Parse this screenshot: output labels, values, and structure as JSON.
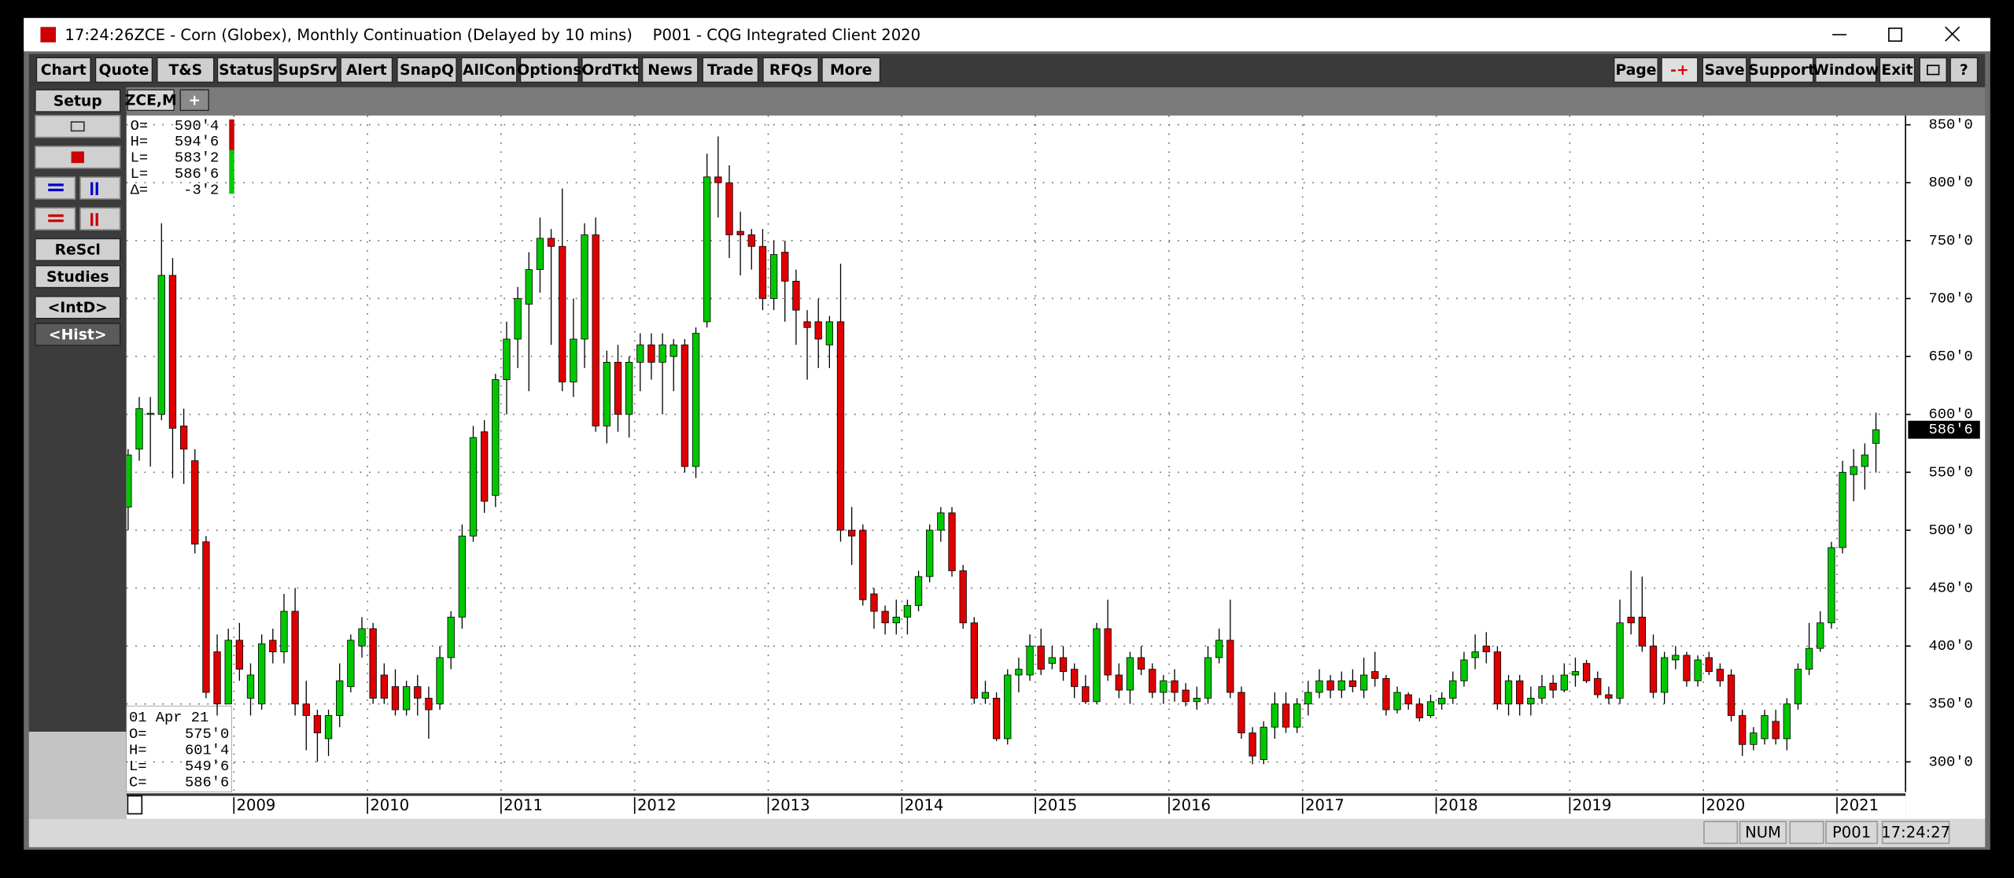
{
  "window": {
    "clock": "17:24:26",
    "title": "ZCE - Corn (Globex), Monthly Continuation (Delayed by 10 mins)",
    "client": "P001 - CQG Integrated Client 2020"
  },
  "toolbar_left": [
    "Chart",
    "Quote",
    "T&S",
    "Status",
    "SupSrv",
    "Alert",
    "SnapQ",
    "AllCon",
    "Options",
    "OrdTkt",
    "News",
    "Trade",
    "RFQs",
    "More"
  ],
  "toolbar_right": [
    "Page",
    "-+",
    "Save",
    "Support",
    "Window",
    "Exit",
    "?"
  ],
  "side_buttons": [
    "Setup",
    "ReScl",
    "Studies",
    "<IntD>",
    "<Hist>"
  ],
  "tabs": [
    "ZCE,M",
    "+"
  ],
  "status_bar": [
    "NUM",
    "P001",
    "17:24:27"
  ],
  "session_readout": {
    "rows": [
      [
        "O=",
        "590'4"
      ],
      [
        "H=",
        "594'6"
      ],
      [
        "L=",
        "583'2"
      ],
      [
        "L=",
        "586'6"
      ],
      [
        "Δ=",
        "-3'2"
      ]
    ]
  },
  "bar_readout": {
    "date": "01 Apr 21",
    "rows": [
      [
        "O=",
        "575'0"
      ],
      [
        "H=",
        "601'4"
      ],
      [
        "L=",
        "549'6"
      ],
      [
        "C=",
        "586'6"
      ]
    ]
  },
  "chart_data": {
    "type": "candlestick",
    "grid": true,
    "up_color": "#00c800",
    "down_color": "#e00000",
    "categories": [
      null,
      null,
      null,
      null,
      null,
      null,
      null,
      null,
      null,
      null,
      "2009",
      null,
      null,
      null,
      null,
      null,
      null,
      null,
      null,
      null,
      null,
      null,
      "2010",
      null,
      null,
      null,
      null,
      null,
      null,
      null,
      null,
      null,
      null,
      null,
      "2011",
      null,
      null,
      null,
      null,
      null,
      null,
      null,
      null,
      null,
      null,
      null,
      "2012",
      null,
      null,
      null,
      null,
      null,
      null,
      null,
      null,
      null,
      null,
      null,
      "2013",
      null,
      null,
      null,
      null,
      null,
      null,
      null,
      null,
      null,
      null,
      null,
      "2014",
      null,
      null,
      null,
      null,
      null,
      null,
      null,
      null,
      null,
      null,
      null,
      "2015",
      null,
      null,
      null,
      null,
      null,
      null,
      null,
      null,
      null,
      null,
      null,
      "2016",
      null,
      null,
      null,
      null,
      null,
      null,
      null,
      null,
      null,
      null,
      null,
      "2017",
      null,
      null,
      null,
      null,
      null,
      null,
      null,
      null,
      null,
      null,
      null,
      "2018",
      null,
      null,
      null,
      null,
      null,
      null,
      null,
      null,
      null,
      null,
      null,
      "2019",
      null,
      null,
      null,
      null,
      null,
      null,
      null,
      null,
      null,
      null,
      null,
      "2020",
      null,
      null,
      null,
      null,
      null,
      null,
      null,
      null,
      null,
      null,
      null,
      "2021",
      null,
      null,
      null
    ],
    "open": [
      520,
      570,
      600,
      600,
      720,
      590,
      560,
      490,
      395,
      350,
      405,
      355,
      350,
      405,
      395,
      430,
      350,
      340,
      320,
      340,
      365,
      400,
      415,
      375,
      365,
      345,
      365,
      355,
      350,
      390,
      425,
      495,
      585,
      530,
      630,
      665,
      695,
      725,
      752,
      745,
      628,
      665,
      755,
      590,
      645,
      600,
      645,
      660,
      645,
      650,
      660,
      555,
      680,
      805,
      800,
      758,
      755,
      745,
      700,
      740,
      715,
      680,
      680,
      660,
      680,
      500,
      500,
      445,
      430,
      420,
      425,
      435,
      460,
      500,
      515,
      465,
      420,
      355,
      355,
      320,
      375,
      375,
      400,
      385,
      390,
      380,
      365,
      352,
      415,
      375,
      362,
      390,
      380,
      360,
      370,
      362,
      352,
      355,
      390,
      405,
      360,
      325,
      302,
      330,
      350,
      330,
      350,
      360,
      370,
      362,
      370,
      362,
      378,
      372,
      345,
      358,
      350,
      340,
      350,
      355,
      370,
      390,
      400,
      395,
      350,
      370,
      350,
      355,
      368,
      362,
      375,
      385,
      372,
      358,
      355,
      425,
      425,
      400,
      360,
      388,
      392,
      370,
      390,
      380,
      375,
      340,
      315,
      320,
      335,
      320,
      350,
      380,
      398,
      420,
      485,
      548,
      555,
      575
    ],
    "high": [
      570,
      615,
      615,
      765,
      735,
      605,
      570,
      495,
      410,
      415,
      420,
      385,
      410,
      415,
      445,
      450,
      370,
      345,
      345,
      385,
      410,
      425,
      420,
      385,
      380,
      370,
      375,
      365,
      400,
      430,
      505,
      590,
      595,
      635,
      680,
      710,
      740,
      770,
      760,
      795,
      700,
      765,
      770,
      655,
      660,
      650,
      670,
      670,
      670,
      665,
      665,
      675,
      825,
      840,
      815,
      775,
      760,
      760,
      750,
      750,
      725,
      690,
      700,
      685,
      730,
      520,
      505,
      450,
      435,
      440,
      440,
      465,
      505,
      520,
      520,
      470,
      425,
      370,
      360,
      380,
      390,
      410,
      415,
      400,
      400,
      385,
      375,
      420,
      440,
      385,
      395,
      400,
      385,
      375,
      380,
      368,
      365,
      400,
      415,
      440,
      365,
      330,
      335,
      360,
      360,
      355,
      370,
      380,
      375,
      378,
      380,
      390,
      395,
      375,
      365,
      360,
      355,
      358,
      360,
      378,
      395,
      410,
      412,
      400,
      375,
      375,
      365,
      375,
      375,
      385,
      390,
      388,
      378,
      365,
      440,
      465,
      460,
      410,
      395,
      400,
      395,
      392,
      395,
      385,
      380,
      345,
      330,
      345,
      345,
      355,
      385,
      420,
      430,
      490,
      560,
      570,
      575,
      601.5
    ],
    "low": [
      500,
      560,
      555,
      595,
      545,
      540,
      480,
      355,
      340,
      350,
      370,
      340,
      345,
      385,
      385,
      340,
      310,
      300,
      305,
      330,
      360,
      390,
      350,
      350,
      340,
      340,
      340,
      320,
      345,
      380,
      415,
      490,
      515,
      520,
      600,
      640,
      620,
      705,
      660,
      620,
      615,
      640,
      585,
      575,
      585,
      580,
      620,
      630,
      600,
      620,
      550,
      545,
      675,
      770,
      735,
      720,
      725,
      690,
      690,
      680,
      660,
      630,
      640,
      640,
      490,
      470,
      435,
      415,
      410,
      410,
      410,
      430,
      455,
      490,
      460,
      415,
      350,
      350,
      318,
      315,
      360,
      370,
      375,
      380,
      370,
      355,
      350,
      350,
      370,
      355,
      350,
      375,
      355,
      350,
      352,
      348,
      345,
      350,
      385,
      355,
      320,
      298,
      298,
      320,
      325,
      325,
      340,
      355,
      355,
      355,
      360,
      355,
      365,
      340,
      342,
      345,
      335,
      338,
      345,
      350,
      365,
      380,
      385,
      345,
      340,
      340,
      340,
      350,
      355,
      360,
      365,
      368,
      355,
      350,
      350,
      410,
      395,
      355,
      350,
      380,
      365,
      365,
      375,
      365,
      335,
      305,
      310,
      315,
      315,
      310,
      345,
      375,
      395,
      415,
      480,
      525,
      535,
      549.75
    ],
    "close": [
      565,
      605,
      601,
      720,
      588,
      570,
      488,
      360,
      350,
      405,
      380,
      375,
      402,
      395,
      430,
      350,
      340,
      325,
      340,
      370,
      405,
      415,
      355,
      355,
      345,
      365,
      355,
      345,
      390,
      425,
      495,
      580,
      525,
      630,
      665,
      700,
      725,
      752,
      745,
      628,
      665,
      755,
      590,
      645,
      600,
      645,
      660,
      645,
      660,
      660,
      555,
      670,
      805,
      800,
      755,
      755,
      745,
      700,
      738,
      715,
      690,
      675,
      665,
      680,
      500,
      495,
      440,
      430,
      420,
      425,
      435,
      460,
      500,
      515,
      465,
      420,
      355,
      360,
      320,
      375,
      380,
      400,
      380,
      390,
      378,
      365,
      352,
      415,
      375,
      362,
      390,
      380,
      360,
      370,
      360,
      352,
      355,
      390,
      405,
      360,
      325,
      305,
      330,
      350,
      330,
      350,
      360,
      370,
      362,
      370,
      365,
      375,
      372,
      345,
      360,
      350,
      338,
      352,
      355,
      370,
      388,
      395,
      395,
      350,
      370,
      350,
      355,
      365,
      362,
      375,
      378,
      370,
      358,
      355,
      420,
      420,
      400,
      360,
      390,
      392,
      370,
      388,
      378,
      370,
      340,
      315,
      325,
      340,
      320,
      350,
      380,
      398,
      420,
      485,
      550,
      555,
      565,
      586.75
    ],
    "ylim": [
      274,
      858
    ],
    "yticks": [
      {
        "value": 300,
        "label": "300'0"
      },
      {
        "value": 350,
        "label": "350'0"
      },
      {
        "value": 400,
        "label": "400'0"
      },
      {
        "value": 450,
        "label": "450'0"
      },
      {
        "value": 500,
        "label": "500'0"
      },
      {
        "value": 550,
        "label": "550'0"
      },
      {
        "value": 600,
        "label": "600'0"
      },
      {
        "value": 650,
        "label": "650'0"
      },
      {
        "value": 700,
        "label": "700'0"
      },
      {
        "value": 750,
        "label": "750'0"
      },
      {
        "value": 800,
        "label": "800'0"
      },
      {
        "value": 850,
        "label": "850'0"
      }
    ],
    "last_price": {
      "value": 586.75,
      "label": "586'6"
    }
  }
}
